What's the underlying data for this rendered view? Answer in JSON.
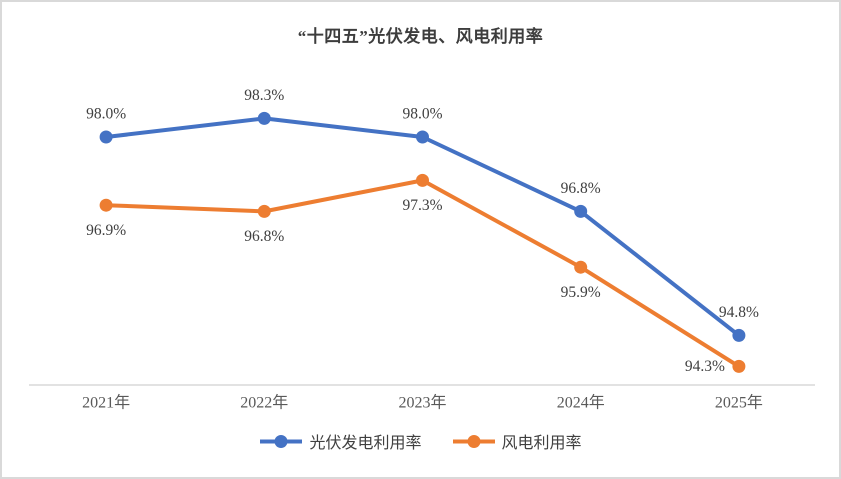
{
  "chart_data": {
    "type": "line",
    "title": "“十四五”光伏发电、风电利用率",
    "categories": [
      "2021年",
      "2022年",
      "2023年",
      "2024年",
      "2025年"
    ],
    "series": [
      {
        "name": "光伏发电利用率",
        "color": "#4472C4",
        "values": [
          98.0,
          98.3,
          98.0,
          96.8,
          94.8
        ],
        "data_labels": [
          "98.0%",
          "98.3%",
          "98.0%",
          "96.8%",
          "94.8%"
        ],
        "label_side": "above"
      },
      {
        "name": "风电利用率",
        "color": "#ED7D31",
        "values": [
          96.9,
          96.8,
          97.3,
          95.9,
          94.3
        ],
        "data_labels": [
          "96.9%",
          "96.8%",
          "97.3%",
          "95.9%",
          "94.3%"
        ],
        "label_side": "below",
        "label_overrides": {
          "4": "left"
        }
      }
    ],
    "xlabel": "",
    "ylabel": "",
    "ylim": [
      94,
      99
    ],
    "grid": false,
    "legend_position": "bottom",
    "axis_line_color": "#d9d9d9",
    "data_label_color": "#404040",
    "axis_label_color": "#595959"
  }
}
